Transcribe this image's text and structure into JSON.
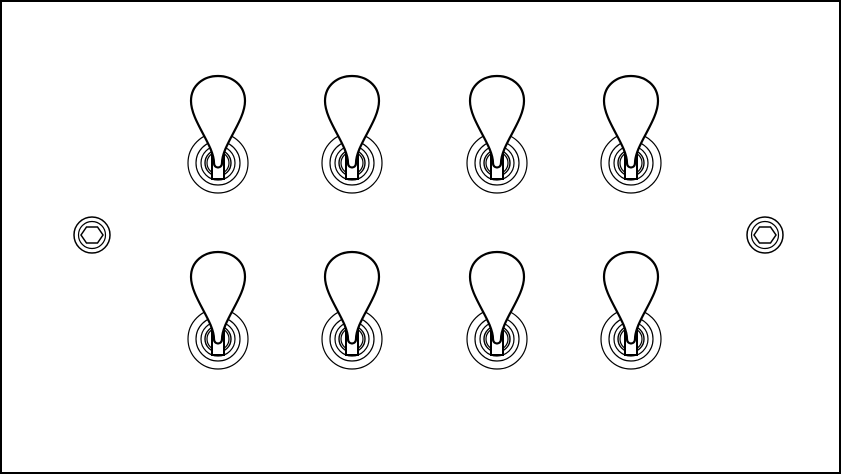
{
  "colors": {
    "background": "#ffffff",
    "stroke": "#000000"
  },
  "plate": {
    "switch_rows": 2,
    "switch_columns": 4,
    "switch_count": 8,
    "screw_count": 2,
    "screw_head": "hex-socket-icon",
    "toggle_state": "up"
  }
}
